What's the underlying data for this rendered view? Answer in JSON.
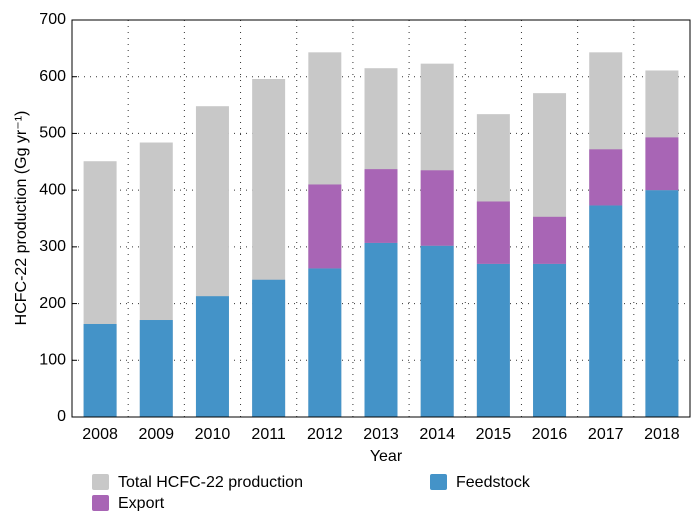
{
  "chart_data": {
    "type": "bar",
    "x_label": "Year",
    "y_label": "HCFC-22 production (Gg yr⁻¹)",
    "categories": [
      "2008",
      "2009",
      "2010",
      "2011",
      "2012",
      "2013",
      "2014",
      "2015",
      "2016",
      "2017",
      "2018"
    ],
    "series": [
      {
        "name": "Total HCFC-22 production",
        "color": "#c8c8c8",
        "values": [
          451,
          484,
          548,
          596,
          643,
          615,
          623,
          534,
          571,
          643,
          611
        ]
      },
      {
        "name": "Feedstock",
        "color": "#4493c8",
        "values": [
          164,
          171,
          213,
          242,
          262,
          307,
          302,
          270,
          270,
          373,
          400
        ]
      },
      {
        "name": "Export",
        "color": "#a865b5",
        "values": [
          null,
          null,
          null,
          null,
          148,
          130,
          133,
          110,
          83,
          99,
          93
        ]
      }
    ],
    "ylim": [
      0,
      700
    ],
    "yticks": [
      0,
      100,
      200,
      300,
      400,
      500,
      600,
      700
    ],
    "grid": true
  }
}
